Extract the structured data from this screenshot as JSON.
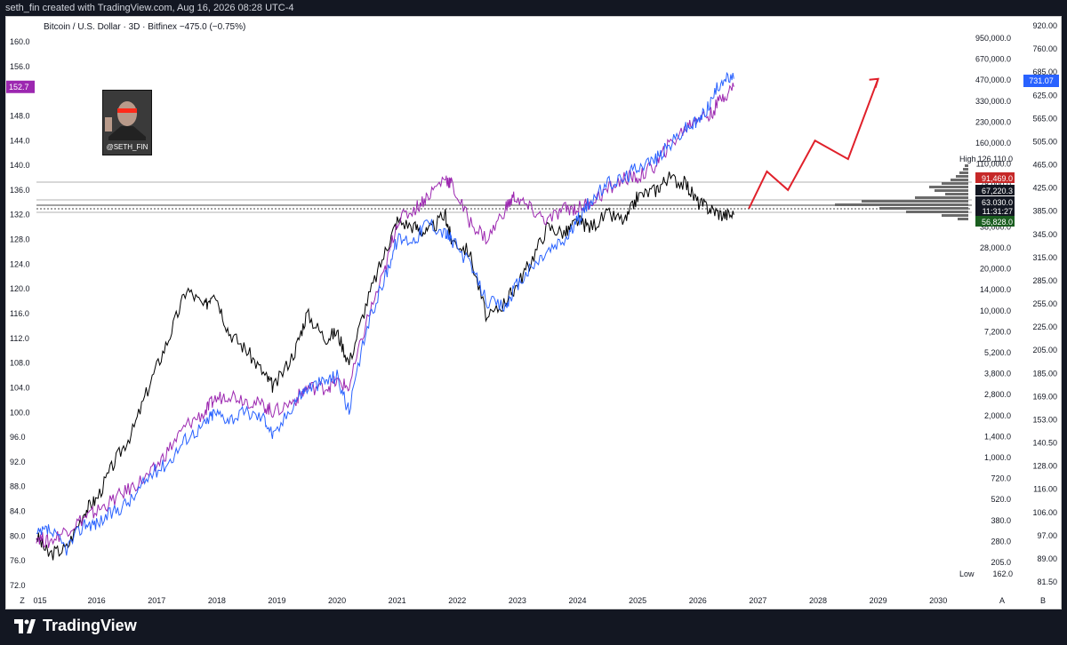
{
  "header": {
    "credit": "seth_fin created with TradingView.com, Aug 16, 2026 08:28 UTC-4"
  },
  "footer": {
    "brand": "TradingView"
  },
  "avatar": {
    "handle": "@SETH_FIN"
  },
  "chart_data": {
    "type": "line",
    "title": "Bitcoin / U.S. Dollar · 3D · Bitfinex −475.0 (−0.75%)",
    "x_ticks": [
      "Z",
      "015",
      "2016",
      "2017",
      "2018",
      "2019",
      "2020",
      "2021",
      "2022",
      "2023",
      "2024",
      "2025",
      "2026",
      "2027",
      "2028",
      "2029",
      "2030",
      "A",
      "B"
    ],
    "left_axis": {
      "min": 72,
      "max": 160,
      "ticks": [
        "160.0",
        "156.0",
        "148.0",
        "144.0",
        "140.0",
        "136.0",
        "132.0",
        "128.0",
        "124.0",
        "120.0",
        "116.0",
        "112.0",
        "108.0",
        "104.0",
        "100.0",
        "96.0",
        "92.0",
        "88.0",
        "84.0",
        "80.0",
        "76.0",
        "72.0"
      ],
      "current": "152.7",
      "current_color": "#9c27b0"
    },
    "mid_axis": {
      "scale": "log",
      "ticks": [
        "950,000.0",
        "670,000.0",
        "470,000.0",
        "330,000.0",
        "230,000.0",
        "160,000.0",
        "110,000.0",
        "78,000.0",
        "55,000.0",
        "38,000.0",
        "28,000.0",
        "20,000.0",
        "14,000.0",
        "10,000.0",
        "7,200.0",
        "5,200.0",
        "3,800.0",
        "2,800.0",
        "2,000.0",
        "1,400.0",
        "1,000.0",
        "720.0",
        "520.0",
        "380.0",
        "280.0",
        "205.0"
      ]
    },
    "right_axis": {
      "ticks": [
        "920.00",
        "760.00",
        "685.00",
        "625.00",
        "565.00",
        "505.00",
        "465.00",
        "425.00",
        "385.00",
        "345.00",
        "315.00",
        "285.00",
        "255.00",
        "225.00",
        "205.00",
        "185.00",
        "169.00",
        "153.00",
        "140.50",
        "128.00",
        "116.00",
        "106.00",
        "97.00",
        "89.00",
        "81.50"
      ],
      "current": "731.07",
      "current_color": "#2962ff"
    },
    "price_labels": [
      {
        "text": "High",
        "value": "126,110.0",
        "style": "plain"
      },
      {
        "text": "",
        "value": "91,469.0",
        "style": "red"
      },
      {
        "text": "",
        "value": "67,220.3",
        "style": "dark"
      },
      {
        "text": "",
        "value": "63,030.0",
        "style": "dark"
      },
      {
        "text": "",
        "value": "11:31:27",
        "style": "dark"
      },
      {
        "text": "",
        "value": "56,828.0",
        "style": "green"
      },
      {
        "text": "Low",
        "value": "162.0",
        "style": "plain"
      }
    ],
    "series": [
      {
        "color": "#000000",
        "x": [
          2015.0,
          2015.2,
          2015.5,
          2015.8,
          2016.0,
          2016.3,
          2016.6,
          2016.9,
          2017.2,
          2017.5,
          2017.8,
          2017.95,
          2018.2,
          2018.5,
          2018.8,
          2018.95,
          2019.3,
          2019.5,
          2019.8,
          2020.0,
          2020.2,
          2020.5,
          2020.8,
          2021.0,
          2021.3,
          2021.5,
          2021.8,
          2021.9,
          2022.2,
          2022.5,
          2022.8,
          2022.95,
          2023.2,
          2023.5,
          2023.8,
          2024.0,
          2024.2,
          2024.5,
          2024.8,
          2025.0,
          2025.3,
          2025.5,
          2025.8,
          2026.0,
          2026.2,
          2026.4,
          2026.6
        ],
        "y": [
          80,
          77,
          78,
          84,
          86,
          92,
          97,
          105,
          112,
          120,
          117,
          120,
          113,
          110,
          106,
          104,
          110,
          116,
          112,
          113,
          108,
          118,
          126,
          131,
          130,
          129,
          132,
          128,
          126,
          115,
          118,
          120,
          124,
          130,
          129,
          131,
          130,
          132,
          131,
          135,
          136,
          138,
          137,
          134,
          133,
          132,
          132
        ]
      },
      {
        "color": "#9c27b0",
        "x": [
          2015.0,
          2015.2,
          2015.5,
          2015.8,
          2016.0,
          2016.3,
          2016.6,
          2016.9,
          2017.2,
          2017.5,
          2017.8,
          2017.95,
          2018.2,
          2018.5,
          2018.8,
          2018.95,
          2019.3,
          2019.5,
          2019.8,
          2020.0,
          2020.2,
          2020.5,
          2020.8,
          2021.0,
          2021.3,
          2021.5,
          2021.8,
          2021.9,
          2022.2,
          2022.5,
          2022.8,
          2022.95,
          2023.2,
          2023.5,
          2023.8,
          2024.0,
          2024.2,
          2024.5,
          2024.8,
          2025.0,
          2025.3,
          2025.5,
          2025.8,
          2026.0,
          2026.2,
          2026.4,
          2026.6
        ],
        "y": [
          80,
          79,
          81,
          83,
          84,
          86,
          88,
          90,
          94,
          98,
          100,
          102,
          103,
          102,
          101,
          100,
          102,
          104,
          104,
          105,
          104,
          115,
          123,
          131,
          133,
          135,
          138,
          137,
          131,
          128,
          133,
          135,
          133,
          131,
          133,
          133,
          134,
          136,
          138,
          138,
          140,
          143,
          146,
          148,
          148,
          151,
          152.7
        ]
      },
      {
        "color": "#2962ff",
        "x": [
          2015.0,
          2015.2,
          2015.5,
          2015.8,
          2016.0,
          2016.3,
          2016.6,
          2016.9,
          2017.2,
          2017.5,
          2017.8,
          2017.95,
          2018.2,
          2018.5,
          2018.8,
          2018.95,
          2019.3,
          2019.5,
          2019.8,
          2020.0,
          2020.2,
          2020.5,
          2020.8,
          2021.0,
          2021.3,
          2021.5,
          2021.8,
          2021.9,
          2022.2,
          2022.5,
          2022.8,
          2022.95,
          2023.2,
          2023.5,
          2023.8,
          2024.0,
          2024.2,
          2024.5,
          2024.8,
          2025.0,
          2025.3,
          2025.5,
          2025.8,
          2026.0,
          2026.2,
          2026.4,
          2026.6
        ],
        "y": [
          80,
          81,
          78,
          82,
          82,
          84,
          86,
          90,
          92,
          96,
          98,
          100,
          99,
          100,
          99,
          96,
          102,
          104,
          105,
          106,
          100,
          114,
          122,
          128,
          128,
          131,
          129,
          128,
          124,
          118,
          117,
          120,
          123,
          126,
          128,
          131,
          134,
          137,
          138,
          140,
          141,
          143,
          146,
          147,
          150,
          154,
          154
        ]
      }
    ],
    "projection": {
      "color": "#e0202a",
      "x": [
        2026.85,
        2027.15,
        2027.5,
        2027.95,
        2028.5,
        2029.0
      ],
      "y": [
        133,
        139,
        136,
        144,
        141,
        154
      ]
    }
  }
}
